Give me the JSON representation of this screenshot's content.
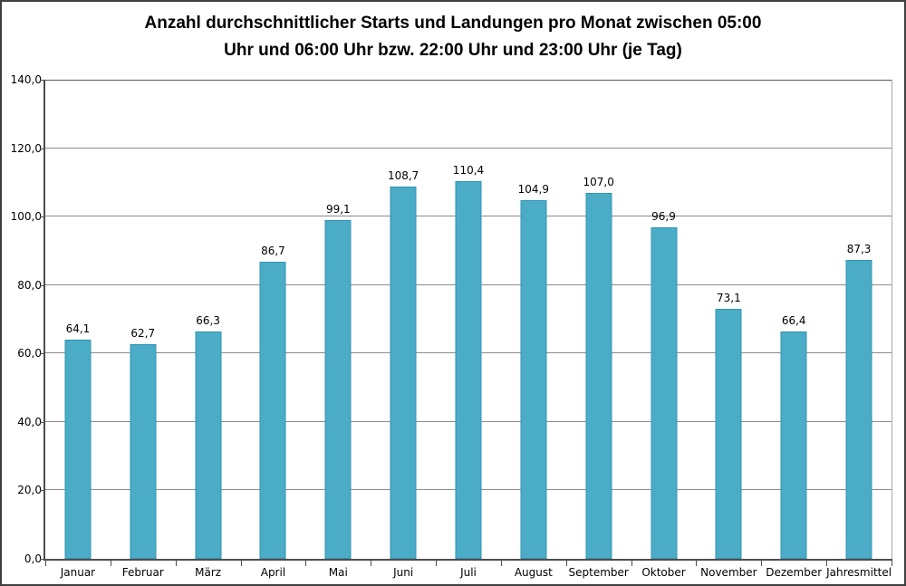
{
  "chart": {
    "title_lines": [
      "Anzahl durchschnittlicher Starts und Landungen pro Monat zwischen 05:00",
      "Uhr und 06:00 Uhr bzw. 22:00 Uhr und 23:00 Uhr (je Tag)"
    ]
  },
  "chart_data": {
    "type": "bar",
    "title": "Anzahl durchschnittlicher Starts und Landungen pro Monat zwischen 05:00 Uhr und 06:00 Uhr bzw. 22:00 Uhr und 23:00 Uhr (je Tag)",
    "categories": [
      "Januar",
      "Februar",
      "März",
      "April",
      "Mai",
      "Juni",
      "Juli",
      "August",
      "September",
      "Oktober",
      "November",
      "Dezember",
      "Jahresmittel"
    ],
    "values": [
      64.1,
      62.7,
      66.3,
      86.7,
      99.1,
      108.7,
      110.4,
      104.9,
      107.0,
      96.9,
      73.1,
      66.4,
      87.3
    ],
    "value_labels": [
      "64,1",
      "62,7",
      "66,3",
      "86,7",
      "99,1",
      "108,7",
      "110,4",
      "104,9",
      "107,0",
      "96,9",
      "73,1",
      "66,4",
      "87,3"
    ],
    "xlabel": "",
    "ylabel": "",
    "ylim": [
      0,
      140
    ],
    "y_ticks": [
      140,
      120,
      100,
      80,
      60,
      40,
      20,
      0
    ],
    "y_tick_labels": [
      "140,0",
      "120,0",
      "100,0",
      "80,0",
      "60,0",
      "40,0",
      "20,0",
      "0,0"
    ],
    "grid": true,
    "legend": false,
    "colors": {
      "bar_fill": "#4AACC6",
      "bar_border": "#3193B2",
      "gridline": "#8C8C8C",
      "axis": "#4D4D4D",
      "plot_top_border": "#595959",
      "plot_right_border": "#ABABAB",
      "title": "#000000",
      "label": "#000000",
      "chart_border": "#3F3F3F",
      "background": "#FFFFFF"
    }
  }
}
